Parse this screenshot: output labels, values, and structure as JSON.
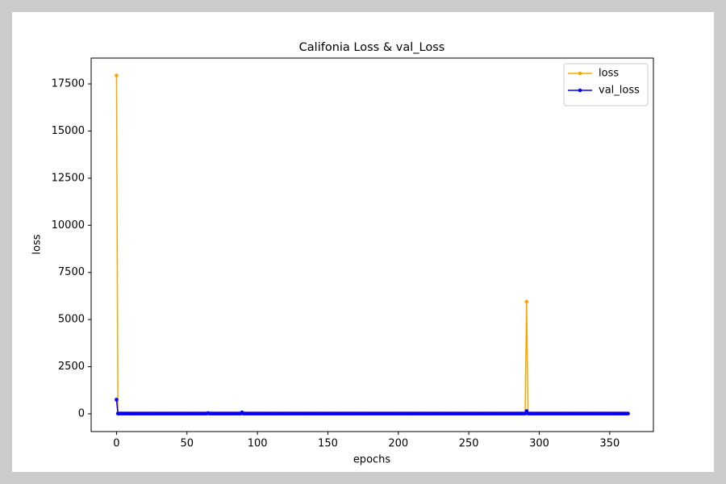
{
  "chart_data": {
    "type": "line",
    "title": "Califonia Loss & val_Loss",
    "x_label": "epochs",
    "y_label": "loss",
    "x": [
      0,
      1,
      2,
      3,
      4,
      5,
      6,
      7,
      8,
      9,
      10,
      11,
      12,
      13,
      14,
      15,
      16,
      17,
      18,
      19,
      20,
      21,
      22,
      23,
      24,
      25,
      26,
      27,
      28,
      29,
      30,
      31,
      32,
      33,
      34,
      35,
      36,
      37,
      38,
      39,
      40,
      41,
      42,
      43,
      44,
      45,
      46,
      47,
      48,
      49,
      50,
      51,
      52,
      53,
      54,
      55,
      56,
      57,
      58,
      59,
      60,
      61,
      62,
      63,
      64,
      65,
      66,
      67,
      68,
      69,
      70,
      71,
      72,
      73,
      74,
      75,
      76,
      77,
      78,
      79,
      80,
      81,
      82,
      83,
      84,
      85,
      86,
      87,
      88,
      89,
      90,
      91,
      92,
      93,
      94,
      95,
      96,
      97,
      98,
      99,
      100,
      101,
      102,
      103,
      104,
      105,
      106,
      107,
      108,
      109,
      110,
      111,
      112,
      113,
      114,
      115,
      116,
      117,
      118,
      119,
      120,
      121,
      122,
      123,
      124,
      125,
      126,
      127,
      128,
      129,
      130,
      131,
      132,
      133,
      134,
      135,
      136,
      137,
      138,
      139,
      140,
      141,
      142,
      143,
      144,
      145,
      146,
      147,
      148,
      149,
      150,
      151,
      152,
      153,
      154,
      155,
      156,
      157,
      158,
      159,
      160,
      161,
      162,
      163,
      164,
      165,
      166,
      167,
      168,
      169,
      170,
      171,
      172,
      173,
      174,
      175,
      176,
      177,
      178,
      179,
      180,
      181,
      182,
      183,
      184,
      185,
      186,
      187,
      188,
      189,
      190,
      191,
      192,
      193,
      194,
      195,
      196,
      197,
      198,
      199,
      200,
      201,
      202,
      203,
      204,
      205,
      206,
      207,
      208,
      209,
      210,
      211,
      212,
      213,
      214,
      215,
      216,
      217,
      218,
      219,
      220,
      221,
      222,
      223,
      224,
      225,
      226,
      227,
      228,
      229,
      230,
      231,
      232,
      233,
      234,
      235,
      236,
      237,
      238,
      239,
      240,
      241,
      242,
      243,
      244,
      245,
      246,
      247,
      248,
      249,
      250,
      251,
      252,
      253,
      254,
      255,
      256,
      257,
      258,
      259,
      260,
      261,
      262,
      263,
      264,
      265,
      266,
      267,
      268,
      269,
      270,
      271,
      272,
      273,
      274,
      275,
      276,
      277,
      278,
      279,
      280,
      281,
      282,
      283,
      284,
      285,
      286,
      287,
      288,
      289,
      290,
      291,
      292,
      293,
      294,
      295,
      296,
      297,
      298,
      299,
      300,
      301,
      302,
      303,
      304,
      305,
      306,
      307,
      308,
      309,
      310,
      311,
      312,
      313,
      314,
      315,
      316,
      317,
      318,
      319,
      320,
      321,
      322,
      323,
      324,
      325,
      326,
      327,
      328,
      329,
      330,
      331,
      332,
      333,
      334,
      335,
      336,
      337,
      338,
      339,
      340,
      341,
      342,
      343,
      344,
      345,
      346,
      347,
      348,
      349,
      350,
      351,
      352,
      353,
      354,
      355,
      356,
      357,
      358,
      359,
      360,
      361,
      362,
      363
    ],
    "series": [
      {
        "name": "loss",
        "color": "#ffa500",
        "values": [
          17950,
          20,
          20,
          20,
          20,
          20,
          20,
          20,
          20,
          20,
          20,
          20,
          20,
          20,
          20,
          20,
          20,
          20,
          20,
          20,
          20,
          20,
          20,
          20,
          20,
          20,
          20,
          20,
          20,
          20,
          20,
          20,
          20,
          20,
          20,
          20,
          20,
          20,
          20,
          20,
          20,
          20,
          20,
          20,
          20,
          20,
          20,
          20,
          20,
          20,
          20,
          20,
          20,
          20,
          20,
          20,
          20,
          20,
          20,
          20,
          20,
          20,
          20,
          20,
          20,
          20,
          20,
          20,
          20,
          20,
          20,
          20,
          20,
          20,
          20,
          20,
          20,
          20,
          20,
          20,
          20,
          20,
          20,
          20,
          20,
          20,
          20,
          20,
          20,
          20,
          20,
          20,
          20,
          20,
          20,
          20,
          20,
          20,
          20,
          20,
          20,
          20,
          20,
          20,
          20,
          20,
          20,
          20,
          20,
          20,
          20,
          20,
          20,
          20,
          20,
          20,
          20,
          20,
          20,
          20,
          20,
          20,
          20,
          20,
          20,
          20,
          20,
          20,
          20,
          20,
          20,
          20,
          20,
          20,
          20,
          20,
          20,
          20,
          20,
          20,
          20,
          20,
          20,
          20,
          20,
          20,
          20,
          20,
          20,
          20,
          20,
          20,
          20,
          20,
          20,
          20,
          20,
          20,
          20,
          20,
          20,
          20,
          20,
          20,
          20,
          20,
          20,
          20,
          20,
          20,
          20,
          20,
          20,
          20,
          20,
          20,
          20,
          20,
          20,
          20,
          20,
          20,
          20,
          20,
          20,
          20,
          20,
          20,
          20,
          20,
          20,
          20,
          20,
          20,
          20,
          20,
          20,
          20,
          20,
          20,
          20,
          20,
          20,
          20,
          20,
          20,
          20,
          20,
          20,
          20,
          20,
          20,
          20,
          20,
          20,
          20,
          20,
          20,
          20,
          20,
          20,
          20,
          20,
          20,
          20,
          20,
          20,
          20,
          20,
          20,
          20,
          20,
          20,
          20,
          20,
          20,
          20,
          20,
          20,
          20,
          20,
          20,
          20,
          20,
          20,
          20,
          20,
          20,
          20,
          20,
          20,
          20,
          20,
          20,
          20,
          20,
          20,
          20,
          20,
          20,
          20,
          20,
          20,
          20,
          20,
          20,
          20,
          20,
          20,
          20,
          20,
          20,
          20,
          20,
          20,
          20,
          20,
          20,
          20,
          20,
          20,
          20,
          20,
          20,
          20,
          20,
          20,
          20,
          20,
          20,
          20,
          5950,
          20,
          20,
          20,
          20,
          20,
          20,
          20,
          20,
          20,
          20,
          20,
          20,
          20,
          20,
          20,
          20,
          20,
          20,
          20,
          20,
          20,
          20,
          20,
          20,
          20,
          20,
          20,
          20,
          20,
          20,
          20,
          20,
          20,
          20,
          20,
          20,
          20,
          20,
          20,
          20,
          20,
          20,
          20,
          20,
          20,
          20,
          20,
          20,
          20,
          20,
          20,
          20,
          20,
          20,
          20,
          20,
          20,
          20,
          20,
          20,
          20,
          20,
          20,
          20,
          20,
          20,
          20,
          20,
          20,
          20,
          20,
          20
        ]
      },
      {
        "name": "val_loss",
        "color": "#0000ff",
        "values": [
          750,
          15,
          15,
          15,
          15,
          15,
          15,
          15,
          15,
          15,
          15,
          15,
          15,
          15,
          15,
          15,
          15,
          15,
          15,
          15,
          15,
          15,
          15,
          15,
          15,
          15,
          15,
          15,
          15,
          15,
          15,
          15,
          15,
          15,
          15,
          15,
          15,
          15,
          15,
          15,
          15,
          15,
          15,
          15,
          15,
          15,
          15,
          15,
          15,
          15,
          15,
          15,
          15,
          15,
          15,
          15,
          15,
          15,
          15,
          15,
          15,
          15,
          15,
          15,
          15,
          40,
          15,
          15,
          15,
          15,
          15,
          15,
          15,
          15,
          15,
          15,
          15,
          15,
          15,
          15,
          15,
          15,
          15,
          15,
          15,
          15,
          15,
          15,
          15,
          80,
          15,
          15,
          15,
          15,
          15,
          15,
          15,
          15,
          15,
          15,
          15,
          15,
          15,
          15,
          15,
          15,
          15,
          15,
          15,
          15,
          15,
          15,
          15,
          15,
          15,
          15,
          15,
          15,
          15,
          15,
          15,
          15,
          15,
          15,
          15,
          15,
          15,
          15,
          15,
          15,
          15,
          15,
          15,
          15,
          15,
          15,
          15,
          15,
          15,
          15,
          15,
          15,
          15,
          15,
          15,
          15,
          15,
          15,
          15,
          15,
          15,
          15,
          15,
          15,
          15,
          15,
          15,
          15,
          15,
          15,
          15,
          15,
          15,
          15,
          15,
          15,
          15,
          15,
          15,
          15,
          15,
          15,
          15,
          15,
          15,
          15,
          15,
          15,
          15,
          15,
          15,
          15,
          15,
          15,
          15,
          15,
          15,
          15,
          15,
          15,
          15,
          15,
          15,
          15,
          15,
          15,
          15,
          15,
          15,
          15,
          15,
          15,
          15,
          15,
          15,
          15,
          15,
          15,
          15,
          15,
          15,
          15,
          15,
          15,
          15,
          15,
          15,
          15,
          15,
          15,
          15,
          15,
          15,
          15,
          15,
          15,
          15,
          15,
          15,
          15,
          15,
          15,
          15,
          15,
          15,
          15,
          15,
          15,
          15,
          15,
          15,
          15,
          15,
          15,
          15,
          15,
          15,
          15,
          15,
          15,
          15,
          15,
          15,
          15,
          15,
          15,
          15,
          15,
          15,
          15,
          15,
          15,
          15,
          15,
          15,
          15,
          15,
          15,
          15,
          15,
          15,
          15,
          15,
          15,
          15,
          15,
          15,
          15,
          15,
          15,
          15,
          15,
          15,
          15,
          15,
          15,
          15,
          15,
          15,
          15,
          15,
          150,
          15,
          15,
          15,
          15,
          15,
          15,
          15,
          15,
          15,
          15,
          15,
          15,
          15,
          15,
          15,
          15,
          15,
          15,
          15,
          15,
          15,
          15,
          15,
          15,
          15,
          15,
          15,
          15,
          15,
          15,
          15,
          15,
          15,
          15,
          15,
          15,
          15,
          15,
          15,
          15,
          15,
          15,
          15,
          15,
          15,
          15,
          15,
          15,
          15,
          15,
          15,
          15,
          15,
          15,
          15,
          15,
          15,
          15,
          15,
          15,
          15,
          15,
          15,
          15,
          15,
          15,
          15,
          15,
          15,
          15,
          15,
          15
        ]
      }
    ],
    "xlim": [
      -18,
      381
    ],
    "ylim": [
      -941,
      18870
    ],
    "xticks": [
      0,
      50,
      100,
      150,
      200,
      250,
      300,
      350
    ],
    "yticks": [
      0,
      2500,
      5000,
      7500,
      10000,
      12500,
      15000,
      17500
    ],
    "legend": "upper right"
  }
}
